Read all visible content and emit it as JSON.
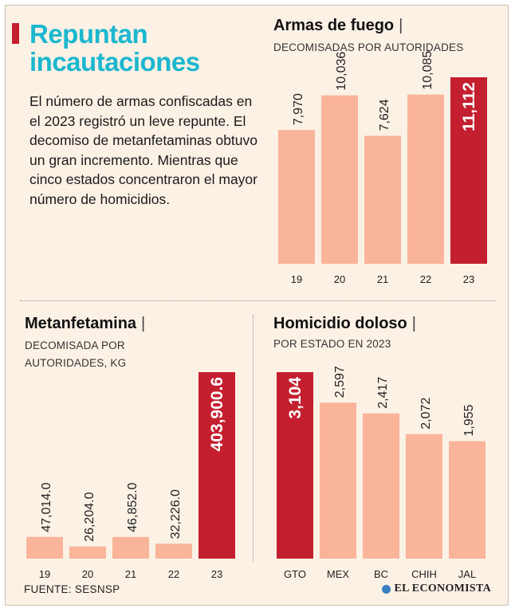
{
  "header": {
    "title": "Repuntan incautaciones",
    "intro": "El número de armas confiscadas en el 2023 registró un leve repunte. El decomiso de metanfetaminas obtuvo un gran incremento. Mientras que cinco estados concentraron el mayor número de homicidios."
  },
  "colors": {
    "normal": "#f9b49a",
    "highlight": "#c41f2f",
    "title": "#1bb7cf",
    "background": "#fcf1e5"
  },
  "panels": {
    "armas": {
      "title": "Armas de fuego",
      "separator": "|",
      "subtitle": "DECOMISADAS POR AUTORIDADES"
    },
    "meta": {
      "title": "Metanfetamina",
      "separator": "|",
      "subtitle": "DECOMISADA POR AUTORIDADES, KG"
    },
    "homicidio": {
      "title": "Homicidio doloso",
      "separator": "|",
      "subtitle": "POR ESTADO EN 2023"
    }
  },
  "chart_data": [
    {
      "id": "armas",
      "type": "bar",
      "title": "Armas de fuego",
      "subtitle": "DECOMISADAS POR AUTORIDADES",
      "categories": [
        "19",
        "20",
        "21",
        "22",
        "23"
      ],
      "values": [
        7970,
        10036,
        7624,
        10085,
        11112
      ],
      "labels": [
        "7,970",
        "10,036",
        "7,624",
        "10,085",
        "11,112"
      ],
      "highlight_index": 4,
      "ylim": [
        0,
        11112
      ]
    },
    {
      "id": "meta",
      "type": "bar",
      "title": "Metanfetamina",
      "subtitle": "DECOMISADA POR AUTORIDADES, KG",
      "categories": [
        "19",
        "20",
        "21",
        "22",
        "23"
      ],
      "values": [
        47014.0,
        26204.0,
        46852.0,
        32226.0,
        403900.6
      ],
      "labels": [
        "47,014.0",
        "26,204.0",
        "46,852.0",
        "32,226.0",
        "403,900.6"
      ],
      "highlight_index": 4,
      "ylim": [
        0,
        403900.6
      ]
    },
    {
      "id": "homicidio",
      "type": "bar",
      "title": "Homicidio doloso",
      "subtitle": "POR ESTADO EN 2023",
      "categories": [
        "GTO",
        "MEX",
        "BC",
        "CHIH",
        "JAL"
      ],
      "values": [
        3104,
        2597,
        2417,
        2072,
        1955
      ],
      "labels": [
        "3,104",
        "2,597",
        "2,417",
        "2,072",
        "1,955"
      ],
      "highlight_index": 0,
      "ylim": [
        0,
        3104
      ]
    }
  ],
  "footer": {
    "source": "FUENTE: SESNSP",
    "brand": "EL ECONOMISTA",
    "brand_logo": "el-economista-logo-icon"
  }
}
